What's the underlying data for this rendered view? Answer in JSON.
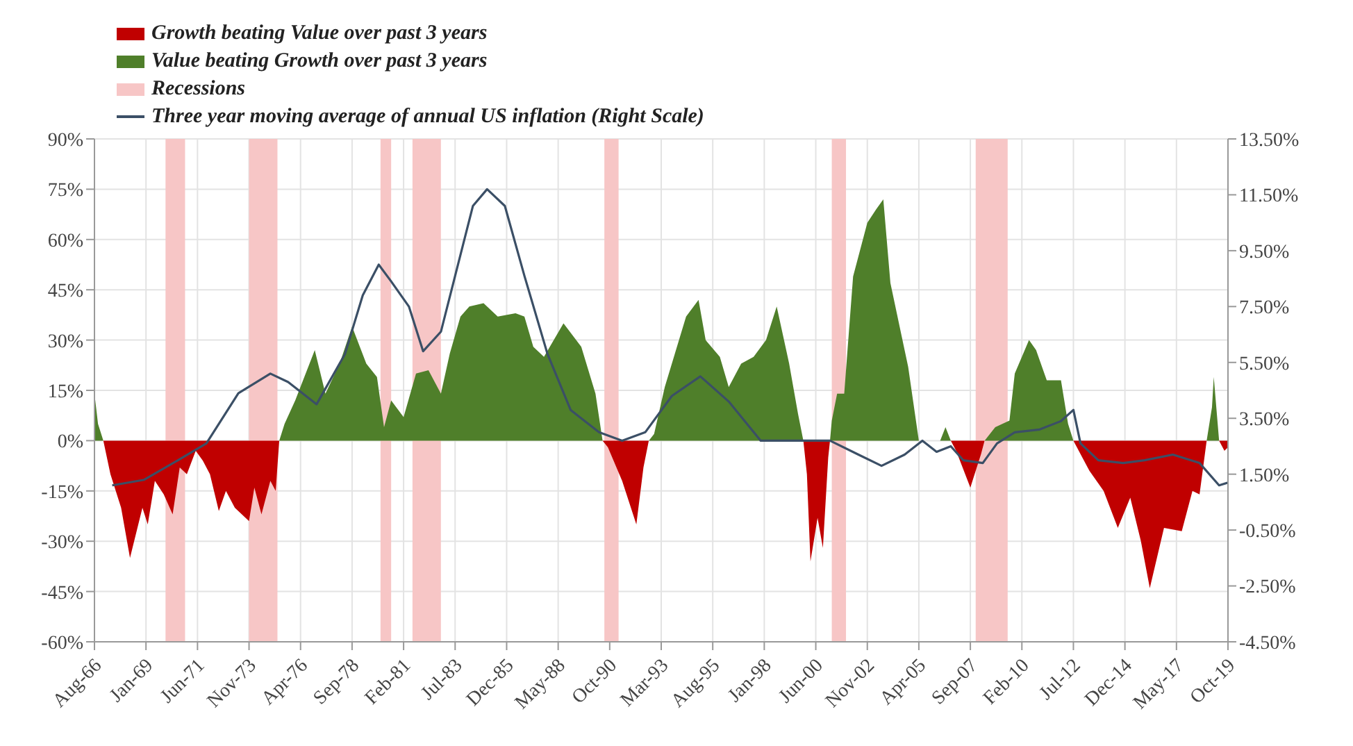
{
  "chart_data": {
    "type": "area",
    "x": [
      "1966-08",
      "1966-10",
      "1967-01",
      "1967-05",
      "1967-11",
      "1968-04",
      "1968-11",
      "1969-02",
      "1969-06",
      "1969-11",
      "1970-04",
      "1970-08",
      "1970-12",
      "1971-05",
      "1971-09",
      "1972-01",
      "1972-06",
      "1972-10",
      "1973-03",
      "1973-11",
      "1974-02",
      "1974-06",
      "1974-11",
      "1975-02",
      "1975-04",
      "1975-07",
      "1976-01",
      "1976-12",
      "1977-06",
      "1978-02",
      "1978-09",
      "1979-05",
      "1979-11",
      "1980-03",
      "1980-07",
      "1981-02",
      "1981-09",
      "1982-04",
      "1982-11",
      "1983-04",
      "1983-10",
      "1984-03",
      "1984-11",
      "1985-07",
      "1986-05",
      "1986-10",
      "1987-03",
      "1987-09",
      "1988-08",
      "1989-06",
      "1990-02",
      "1990-06",
      "1990-09",
      "1991-05",
      "1992-01",
      "1992-05",
      "1992-08",
      "1992-11",
      "1993-05",
      "1994-05",
      "1994-12",
      "1995-04",
      "1995-12",
      "1996-05",
      "1996-12",
      "1997-07",
      "1998-02",
      "1998-08",
      "1999-03",
      "1999-08",
      "1999-11",
      "2000-01",
      "2000-03",
      "2000-07",
      "2000-10",
      "2001-01",
      "2001-02",
      "2001-03",
      "2001-06",
      "2001-10",
      "2002-03",
      "2002-11",
      "2003-04",
      "2003-08",
      "2003-12",
      "2004-06",
      "2004-10",
      "2005-04",
      "2006-04",
      "2006-07",
      "2006-10",
      "2007-01",
      "2007-09",
      "2008-03",
      "2008-05",
      "2008-11",
      "2009-07",
      "2009-10",
      "2010-06",
      "2010-10",
      "2011-04",
      "2011-12",
      "2012-04",
      "2012-07",
      "2013-04",
      "2013-12",
      "2014-08",
      "2015-03",
      "2015-09",
      "2016-02",
      "2016-10",
      "2017-08",
      "2018-02",
      "2018-06",
      "2018-10",
      "2019-01",
      "2019-02",
      "2019-05",
      "2019-08",
      "2019-10"
    ],
    "series": [
      {
        "name": "Growth beating Value over past 3 years",
        "color": "#c00000",
        "values": [
          0,
          0,
          0,
          -10,
          -20,
          -35,
          -20,
          -25,
          -12,
          -16,
          -22,
          -8,
          -10,
          -3,
          -6,
          -10,
          -21,
          -15,
          -20,
          -24,
          -14,
          -22,
          -12,
          -15,
          0,
          0,
          0,
          0,
          0,
          0,
          0,
          0,
          0,
          0,
          0,
          0,
          0,
          0,
          0,
          0,
          0,
          0,
          0,
          0,
          0,
          0,
          0,
          0,
          0,
          0,
          0,
          0,
          -2,
          -12,
          -25,
          -8,
          0,
          0,
          0,
          0,
          0,
          0,
          0,
          0,
          0,
          0,
          0,
          0,
          0,
          0,
          0,
          -10,
          -36,
          -23,
          -32,
          -5,
          0,
          0,
          0,
          0,
          0,
          0,
          0,
          0,
          0,
          0,
          0,
          0,
          0,
          0,
          0,
          -3,
          -14,
          -4,
          0,
          0,
          0,
          0,
          0,
          0,
          0,
          0,
          0,
          0,
          -9,
          -15,
          -26,
          -17,
          -30,
          -44,
          -26,
          -27,
          -15,
          -16,
          0,
          0,
          0,
          0,
          -3,
          -2
        ]
      },
      {
        "name": "Value beating Growth over past 3 years",
        "color": "#4f7f2a",
        "values": [
          14,
          5,
          0,
          0,
          0,
          0,
          0,
          0,
          0,
          0,
          0,
          0,
          0,
          0,
          0,
          0,
          0,
          0,
          0,
          0,
          0,
          0,
          0,
          0,
          0,
          5,
          12,
          27,
          14,
          23,
          34,
          23,
          19,
          4,
          12,
          7,
          20,
          21,
          14,
          26,
          37,
          40,
          41,
          37,
          38,
          37,
          28,
          25,
          35,
          28,
          14,
          0,
          0,
          0,
          0,
          0,
          0,
          2,
          16,
          37,
          42,
          30,
          25,
          16,
          23,
          25,
          30,
          40,
          23,
          8,
          0,
          0,
          0,
          0,
          0,
          0,
          0,
          6,
          14,
          14,
          49,
          65,
          69,
          72,
          47,
          32,
          22,
          0,
          0,
          4,
          0,
          0,
          0,
          0,
          0,
          4,
          6,
          20,
          30,
          27,
          18,
          18,
          5,
          0,
          0,
          0,
          0,
          0,
          0,
          0,
          0,
          0,
          0,
          0,
          0,
          10,
          19,
          0,
          0,
          0
        ]
      },
      {
        "name": "Three year moving average of annual US inflation (Right Scale)",
        "type": "line",
        "axis": "y2",
        "color": "#3b4f66",
        "x": [
          "1967-06",
          "1968-12",
          "1970-07",
          "1971-11",
          "1973-05",
          "1974-11",
          "1975-09",
          "1977-01",
          "1978-05",
          "1979-03",
          "1979-12",
          "1980-07",
          "1981-05",
          "1982-01",
          "1982-11",
          "1983-07",
          "1984-05",
          "1985-01",
          "1985-11",
          "1986-10",
          "1987-11",
          "1988-12",
          "1990-04",
          "1991-05",
          "1992-06",
          "1993-09",
          "1995-01",
          "1996-05",
          "1997-11",
          "1999-08",
          "2001-02",
          "2002-06",
          "2003-07",
          "2004-08",
          "2005-06",
          "2006-02",
          "2006-10",
          "2007-05",
          "2008-04",
          "2008-12",
          "2009-10",
          "2010-12",
          "2011-12",
          "2012-07",
          "2012-11",
          "2013-09",
          "2014-11",
          "2015-11",
          "2017-03",
          "2018-06",
          "2019-05",
          "2019-10"
        ],
        "values": [
          1.1,
          1.3,
          2.0,
          2.6,
          4.4,
          5.1,
          4.8,
          4.0,
          5.8,
          7.9,
          9.0,
          8.4,
          7.5,
          5.9,
          6.6,
          8.6,
          11.1,
          11.7,
          11.1,
          8.6,
          5.8,
          3.8,
          3.0,
          2.7,
          3.0,
          4.3,
          5.0,
          4.1,
          2.7,
          2.7,
          2.7,
          2.2,
          1.8,
          2.2,
          2.7,
          2.3,
          2.5,
          2.0,
          1.9,
          2.6,
          3.0,
          3.1,
          3.4,
          3.8,
          2.6,
          2.0,
          1.9,
          2.0,
          2.2,
          1.9,
          1.1,
          1.2
        ]
      }
    ],
    "xlim": [
      "1966-08",
      "2019-10"
    ],
    "xticks": [
      {
        "value": "1966-08",
        "label": "Aug-66"
      },
      {
        "value": "1969-01",
        "label": "Jan-69"
      },
      {
        "value": "1971-06",
        "label": "Jun-71"
      },
      {
        "value": "1973-11",
        "label": "Nov-73"
      },
      {
        "value": "1976-04",
        "label": "Apr-76"
      },
      {
        "value": "1978-09",
        "label": "Sep-78"
      },
      {
        "value": "1981-02",
        "label": "Feb-81"
      },
      {
        "value": "1983-07",
        "label": "Jul-83"
      },
      {
        "value": "1985-12",
        "label": "Dec-85"
      },
      {
        "value": "1988-05",
        "label": "May-88"
      },
      {
        "value": "1990-10",
        "label": "Oct-90"
      },
      {
        "value": "1993-03",
        "label": "Mar-93"
      },
      {
        "value": "1995-08",
        "label": "Aug-95"
      },
      {
        "value": "1998-01",
        "label": "Jan-98"
      },
      {
        "value": "2000-06",
        "label": "Jun-00"
      },
      {
        "value": "2002-11",
        "label": "Nov-02"
      },
      {
        "value": "2005-04",
        "label": "Apr-05"
      },
      {
        "value": "2007-09",
        "label": "Sep-07"
      },
      {
        "value": "2010-02",
        "label": "Feb-10"
      },
      {
        "value": "2012-07",
        "label": "Jul-12"
      },
      {
        "value": "2014-12",
        "label": "Dec-14"
      },
      {
        "value": "2017-05",
        "label": "May-17"
      },
      {
        "value": "2019-10",
        "label": "Oct-19"
      }
    ],
    "ylim": [
      -60,
      90
    ],
    "yticks": [
      {
        "value": -60,
        "label": "-60%"
      },
      {
        "value": -45,
        "label": "-45%"
      },
      {
        "value": -30,
        "label": "-30%"
      },
      {
        "value": -15,
        "label": "-15%"
      },
      {
        "value": 0,
        "label": "0%"
      },
      {
        "value": 15,
        "label": "15%"
      },
      {
        "value": 30,
        "label": "30%"
      },
      {
        "value": 45,
        "label": "45%"
      },
      {
        "value": 60,
        "label": "60%"
      },
      {
        "value": 75,
        "label": "75%"
      },
      {
        "value": 90,
        "label": "90%"
      }
    ],
    "y2lim": [
      -4.5,
      13.5
    ],
    "y2ticks": [
      {
        "value": -4.5,
        "label": "-4.50%"
      },
      {
        "value": -2.5,
        "label": "-2.50%"
      },
      {
        "value": -0.5,
        "label": "-0.50%"
      },
      {
        "value": 1.5,
        "label": "1.50%"
      },
      {
        "value": 3.5,
        "label": "3.50%"
      },
      {
        "value": 5.5,
        "label": "5.50%"
      },
      {
        "value": 7.5,
        "label": "7.50%"
      },
      {
        "value": 9.5,
        "label": "9.50%"
      },
      {
        "value": 11.5,
        "label": "11.50%"
      },
      {
        "value": 13.5,
        "label": "13.50%"
      }
    ],
    "bands": [
      {
        "axis": "x",
        "from": "1969-12",
        "to": "1970-11",
        "label": "Recessions",
        "color": "#f7c6c6"
      },
      {
        "axis": "x",
        "from": "1973-11",
        "to": "1975-03",
        "color": "#f7c6c6"
      },
      {
        "axis": "x",
        "from": "1980-01",
        "to": "1980-07",
        "color": "#f7c6c6"
      },
      {
        "axis": "x",
        "from": "1981-07",
        "to": "1982-11",
        "color": "#f7c6c6"
      },
      {
        "axis": "x",
        "from": "1990-07",
        "to": "1991-03",
        "color": "#f7c6c6"
      },
      {
        "axis": "x",
        "from": "2001-03",
        "to": "2001-11",
        "color": "#f7c6c6"
      },
      {
        "axis": "x",
        "from": "2007-12",
        "to": "2009-06",
        "color": "#f7c6c6"
      }
    ],
    "grid": true,
    "legend": "top left"
  }
}
